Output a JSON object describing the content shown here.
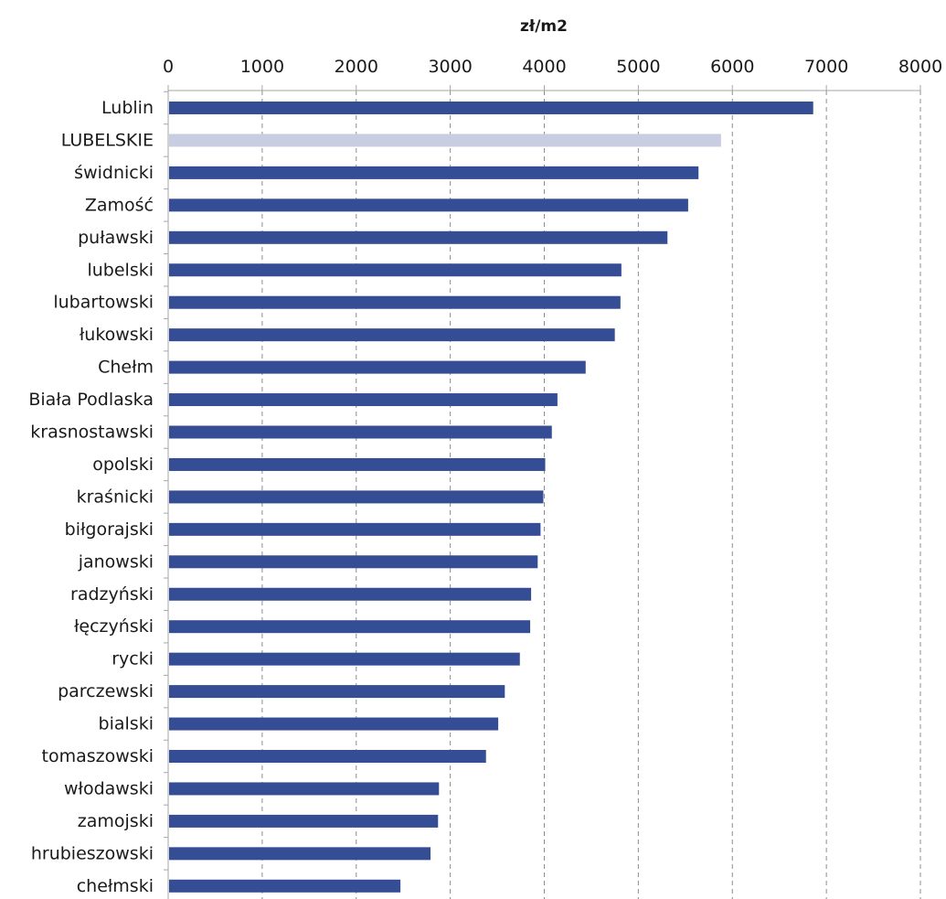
{
  "chart_data": {
    "type": "bar",
    "orientation": "horizontal",
    "title": "",
    "xlabel": "zł/m2",
    "ylabel": "",
    "xlim": [
      0,
      8000
    ],
    "x_ticks": [
      0,
      1000,
      2000,
      3000,
      4000,
      5000,
      6000,
      7000,
      8000
    ],
    "x_axis_position": "top",
    "grid": "vertical dashed",
    "legend": "none",
    "categories": [
      "Lublin",
      "LUBELSKIE",
      "świdnicki",
      "Zamość",
      "puławski",
      "lubelski",
      "lubartowski",
      "łukowski",
      "Chełm",
      "Biała Podlaska",
      "krasnostawski",
      "opolski",
      "kraśnicki",
      "biłgorajski",
      "janowski",
      "radzyński",
      "łęczyński",
      "rycki",
      "parczewski",
      "bialski",
      "tomaszowski",
      "włodawski",
      "zamojski",
      "hrubieszowski",
      "chełmski"
    ],
    "values": [
      6860,
      5880,
      5640,
      5530,
      5310,
      4820,
      4810,
      4750,
      4440,
      4140,
      4080,
      4010,
      3990,
      3960,
      3930,
      3860,
      3850,
      3740,
      3580,
      3510,
      3380,
      2880,
      2870,
      2790,
      2470
    ],
    "highlight_category": "LUBELSKIE",
    "colors": {
      "bar": "#344d94",
      "highlight_bar": "#c8cde1",
      "axis": "#a6a6a6",
      "grid": "#8c8c8c"
    }
  }
}
